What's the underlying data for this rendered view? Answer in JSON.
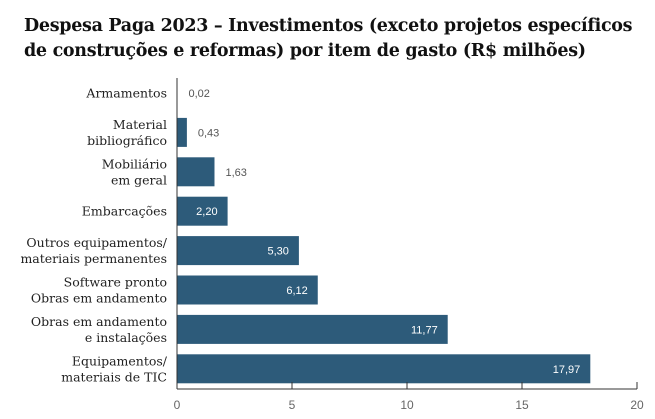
{
  "chart_data": {
    "type": "bar",
    "orientation": "horizontal",
    "title": "Despesa Paga 2023 – Investimentos (exceto projetos específicos de construções e reformas) por item de gasto (R$ milhões)",
    "categories": [
      [
        "Armamentos"
      ],
      [
        "Material",
        "bibliográfico"
      ],
      [
        "Mobiliário",
        "em geral"
      ],
      [
        "Embarcações"
      ],
      [
        "Outros equipamentos/",
        "materiais permanentes"
      ],
      [
        "Software pronto",
        "Obras em andamento"
      ],
      [
        "Obras em andamento",
        "e instalações"
      ],
      [
        "Equipamentos/",
        "materiais de TIC"
      ]
    ],
    "values": [
      0.02,
      0.43,
      1.63,
      2.2,
      5.3,
      6.12,
      11.77,
      17.97
    ],
    "value_labels": [
      "0,02",
      "0,43",
      "1,63",
      "2,20",
      "5,30",
      "6,12",
      "11,77",
      "17,97"
    ],
    "xlim": [
      0,
      20
    ],
    "xticks": [
      0,
      5,
      10,
      15,
      20
    ],
    "xlabel": "",
    "ylabel": "",
    "grid": false,
    "bar_color": "#2d5b7a"
  }
}
